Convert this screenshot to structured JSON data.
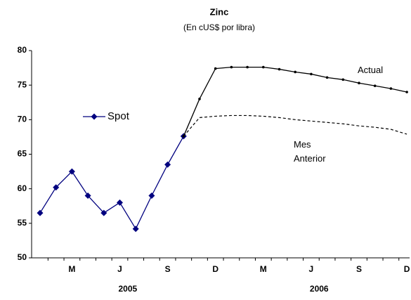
{
  "chart_data": {
    "type": "line",
    "title": "Zinc",
    "subtitle": "(En cUS$ por libra)",
    "categories": [
      null,
      null,
      "M",
      null,
      null,
      "J",
      null,
      null,
      "S",
      null,
      null,
      "D",
      null,
      null,
      "M",
      null,
      null,
      "J",
      null,
      null,
      "S",
      null,
      null,
      "D"
    ],
    "x_groups": [
      {
        "label": "2005",
        "start": 0,
        "end": 11
      },
      {
        "label": "2006",
        "start": 12,
        "end": 23
      }
    ],
    "series": [
      {
        "name": "Spot",
        "color": "#00007f",
        "marker": "diamond",
        "values": [
          56.5,
          60.2,
          62.5,
          59.0,
          56.5,
          58.0,
          54.2,
          59.0,
          63.5,
          67.6,
          null,
          null,
          null,
          null,
          null,
          null,
          null,
          null,
          null,
          null,
          null,
          null,
          null,
          null
        ]
      },
      {
        "name": "Actual",
        "color": "#000000",
        "marker": "dot",
        "values": [
          null,
          null,
          null,
          null,
          null,
          null,
          null,
          null,
          null,
          67.6,
          73.0,
          77.4,
          77.6,
          77.6,
          77.6,
          77.3,
          76.9,
          76.6,
          76.1,
          75.8,
          75.3,
          74.9,
          74.5,
          74.0
        ]
      },
      {
        "name": "Mes Anterior",
        "color": "#000000",
        "dashed": true,
        "values": [
          null,
          null,
          null,
          null,
          null,
          null,
          null,
          null,
          null,
          67.6,
          70.3,
          70.5,
          70.6,
          70.6,
          70.5,
          70.3,
          70.0,
          69.8,
          69.6,
          69.4,
          69.1,
          68.9,
          68.6,
          67.9
        ]
      }
    ],
    "legend": [
      "Spot"
    ],
    "ylim": [
      50,
      80
    ],
    "yticks": [
      50,
      55,
      60,
      65,
      70,
      75,
      80
    ]
  }
}
